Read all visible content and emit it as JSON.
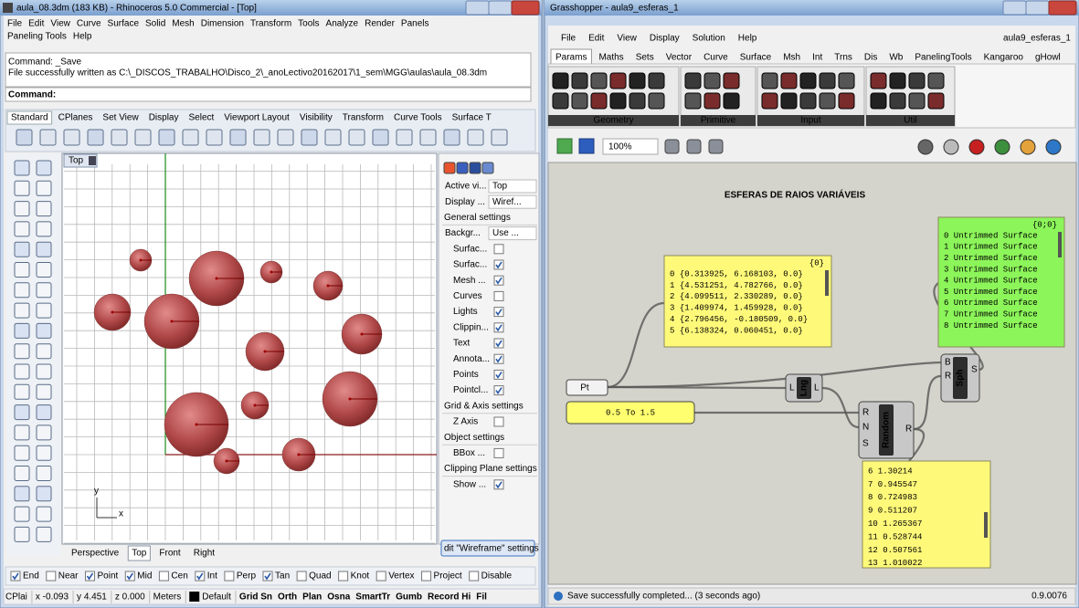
{
  "rhino": {
    "title": "aula_08.3dm (183 KB) - Rhinoceros 5.0 Commercial - [Top]",
    "menu": [
      "File",
      "Edit",
      "View",
      "Curve",
      "Surface",
      "Solid",
      "Mesh",
      "Dimension",
      "Transform",
      "Tools",
      "Analyze",
      "Render",
      "Panels"
    ],
    "menu2": [
      "Paneling Tools",
      "Help"
    ],
    "history": [
      "Command: _Save",
      "File successfully written as C:\\_DISCOS_TRABALHO\\Disco_2\\_anoLectivo20162017\\1_sem\\MGG\\aulas\\aula_08.3dm"
    ],
    "prompt": "Command:",
    "toolbar_tabs": [
      "Standard",
      "CPlanes",
      "Set View",
      "Display",
      "Select",
      "Viewport Layout",
      "Visibility",
      "Transform",
      "Curve Tools",
      "Surface T"
    ],
    "viewport": "Top",
    "axis_x": "x",
    "axis_y": "y",
    "panel_rows": [
      {
        "label": "Active vi...",
        "value": "Top"
      },
      {
        "label": "Display ...",
        "value": "Wiref..."
      },
      {
        "heading": "General settings"
      },
      {
        "label": "Backgr...",
        "value": "Use ..."
      },
      {
        "label": "Surfac...",
        "checked": false
      },
      {
        "label": "Surfac...",
        "checked": true
      },
      {
        "label": "Mesh ...",
        "checked": true
      },
      {
        "label": "Curves",
        "checked": false
      },
      {
        "label": "Lights",
        "checked": true
      },
      {
        "label": "Clippin...",
        "checked": true
      },
      {
        "label": "Text",
        "checked": true
      },
      {
        "label": "Annota...",
        "checked": true
      },
      {
        "label": "Points",
        "checked": true
      },
      {
        "label": "Pointcl...",
        "checked": true
      },
      {
        "heading": "Grid & Axis settings"
      },
      {
        "label": "Z Axis",
        "checked": false
      },
      {
        "heading": "Object settings"
      },
      {
        "label": "BBox ...",
        "checked": false
      },
      {
        "heading": "Clipping Plane settings"
      },
      {
        "label": "Show ...",
        "checked": true
      }
    ],
    "panel_button": "dit \"Wireframe\" settings",
    "view_tabs": [
      "Perspective",
      "Top",
      "Front",
      "Right"
    ],
    "osnaps": [
      {
        "label": "End",
        "checked": true
      },
      {
        "label": "Near",
        "checked": false
      },
      {
        "label": "Point",
        "checked": true
      },
      {
        "label": "Mid",
        "checked": true
      },
      {
        "label": "Cen",
        "checked": false
      },
      {
        "label": "Int",
        "checked": true
      },
      {
        "label": "Perp",
        "checked": false
      },
      {
        "label": "Tan",
        "checked": true
      },
      {
        "label": "Quad",
        "checked": false
      },
      {
        "label": "Knot",
        "checked": false
      },
      {
        "label": "Vertex",
        "checked": false
      },
      {
        "label": "Project",
        "checked": false
      },
      {
        "label": "Disable",
        "checked": false
      }
    ],
    "status": [
      "CPlai",
      "x -0.093",
      "y 4.451",
      "z 0.000",
      "Meters",
      "Default"
    ],
    "status_buttons": [
      "Grid Sn",
      "Orth",
      "Plan",
      "Osna",
      "SmartTr",
      "Gumb",
      "Record Hi",
      "Fil"
    ]
  },
  "grasshopper": {
    "title": "Grasshopper - aula9_esferas_1",
    "menu": [
      "File",
      "Edit",
      "View",
      "Display",
      "Solution",
      "Help"
    ],
    "document": "aula9_esferas_1",
    "tabs": [
      "Params",
      "Maths",
      "Sets",
      "Vector",
      "Curve",
      "Surface",
      "Msh",
      "Int",
      "Trns",
      "Dis",
      "Wb",
      "PanelingTools",
      "Kangaroo",
      "gHowl"
    ],
    "groups": [
      "Geometry",
      "Primitive",
      "Input",
      "Util"
    ],
    "zoom": "100%",
    "canvas_title": "ESFERAS DE RAIOS VARIÁVEIS",
    "points_panel": {
      "header": "{0}",
      "rows": [
        "0 {0.313925, 6.168103, 0.0}",
        "1 {4.531251, 4.782766, 0.0}",
        "2 {4.099511, 2.330289, 0.0}",
        "3 {1.409974, 1.459928, 0.0}",
        "4 {2.796456, -0.180509, 0.0}",
        "5 {6.138324, 0.060451, 0.0}"
      ]
    },
    "surface_panel": {
      "header": "{0;0}",
      "rows": [
        "0 Untrimmed Surface",
        "1 Untrimmed Surface",
        "2 Untrimmed Surface",
        "3 Untrimmed Surface",
        "4 Untrimmed Surface",
        "5 Untrimmed Surface",
        "6 Untrimmed Surface",
        "7 Untrimmed Surface",
        "8 Untrimmed Surface"
      ]
    },
    "random_panel": {
      "rows": [
        "6 1.30214",
        "7 0.945547",
        "8 0.724983",
        "9 0.511207",
        "10 1.265367",
        "11 0.528744",
        "12 0.507561",
        "13 1.010022"
      ]
    },
    "pt": "Pt",
    "slider": "0.5 To 1.5",
    "lng": {
      "name": "Lng",
      "input": "L",
      "output": "L"
    },
    "random": {
      "name": "Random",
      "inputs": [
        "R",
        "N",
        "S"
      ],
      "output": "R"
    },
    "sphere": {
      "name": "Sph",
      "inputs": [
        "B",
        "R"
      ],
      "output": "S"
    },
    "status": "Save successfully completed... (3 seconds ago)",
    "version": "0.9.0076"
  }
}
